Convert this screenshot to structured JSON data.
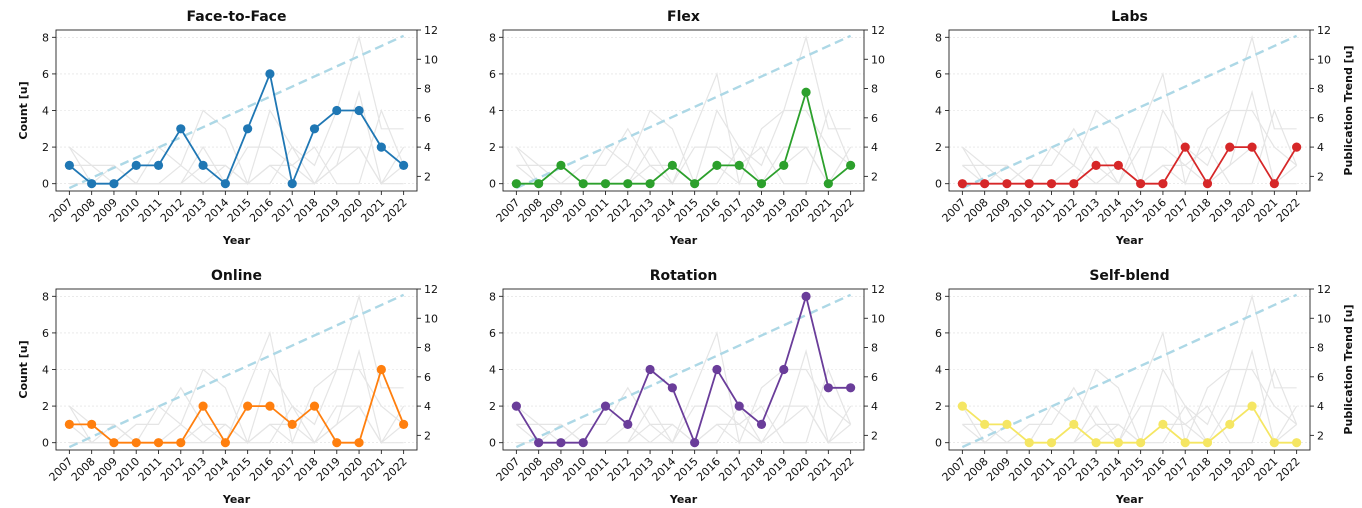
{
  "chart_data": [
    {
      "type": "line",
      "title": "Face-to-Face",
      "xlabel": "Year",
      "ylabel": "Count [u]",
      "y2label": "",
      "show_ylabel": true,
      "show_y2label": false,
      "color": "#1f77b4",
      "x": [
        2007,
        2008,
        2009,
        2010,
        2011,
        2012,
        2013,
        2014,
        2015,
        2016,
        2017,
        2018,
        2019,
        2020,
        2021,
        2022
      ],
      "values": [
        1,
        0,
        0,
        1,
        1,
        3,
        1,
        0,
        3,
        6,
        0,
        3,
        4,
        4,
        2,
        1
      ]
    },
    {
      "type": "line",
      "title": "Flex",
      "xlabel": "Year",
      "ylabel": "",
      "y2label": "",
      "show_ylabel": false,
      "show_y2label": false,
      "color": "#2ca02c",
      "x": [
        2007,
        2008,
        2009,
        2010,
        2011,
        2012,
        2013,
        2014,
        2015,
        2016,
        2017,
        2018,
        2019,
        2020,
        2021,
        2022
      ],
      "values": [
        0,
        0,
        1,
        0,
        0,
        0,
        0,
        1,
        0,
        1,
        1,
        0,
        1,
        5,
        0,
        1
      ]
    },
    {
      "type": "line",
      "title": "Labs",
      "xlabel": "Year",
      "ylabel": "",
      "y2label": "Publication Trend [u]",
      "show_ylabel": false,
      "show_y2label": true,
      "color": "#d62728",
      "x": [
        2007,
        2008,
        2009,
        2010,
        2011,
        2012,
        2013,
        2014,
        2015,
        2016,
        2017,
        2018,
        2019,
        2020,
        2021,
        2022
      ],
      "values": [
        0,
        0,
        0,
        0,
        0,
        0,
        1,
        1,
        0,
        0,
        2,
        0,
        2,
        2,
        0,
        2
      ]
    },
    {
      "type": "line",
      "title": "Online",
      "xlabel": "Year",
      "ylabel": "Count [u]",
      "y2label": "",
      "show_ylabel": true,
      "show_y2label": false,
      "color": "#ff7f0e",
      "x": [
        2007,
        2008,
        2009,
        2010,
        2011,
        2012,
        2013,
        2014,
        2015,
        2016,
        2017,
        2018,
        2019,
        2020,
        2021,
        2022
      ],
      "values": [
        1,
        1,
        0,
        0,
        0,
        0,
        2,
        0,
        2,
        2,
        1,
        2,
        0,
        0,
        4,
        1
      ]
    },
    {
      "type": "line",
      "title": "Rotation",
      "xlabel": "Year",
      "ylabel": "",
      "y2label": "",
      "show_ylabel": false,
      "show_y2label": false,
      "color": "#6a3d9a",
      "x": [
        2007,
        2008,
        2009,
        2010,
        2011,
        2012,
        2013,
        2014,
        2015,
        2016,
        2017,
        2018,
        2019,
        2020,
        2021,
        2022
      ],
      "values": [
        2,
        0,
        0,
        0,
        2,
        1,
        4,
        3,
        0,
        4,
        2,
        1,
        4,
        8,
        3,
        3
      ]
    },
    {
      "type": "line",
      "title": "Self-blend",
      "xlabel": "Year",
      "ylabel": "",
      "y2label": "Publication Trend [u]",
      "show_ylabel": false,
      "show_y2label": true,
      "color": "#f5e663",
      "x": [
        2007,
        2008,
        2009,
        2010,
        2011,
        2012,
        2013,
        2014,
        2015,
        2016,
        2017,
        2018,
        2019,
        2020,
        2021,
        2022
      ],
      "values": [
        2,
        1,
        1,
        0,
        0,
        1,
        0,
        0,
        0,
        1,
        0,
        0,
        1,
        2,
        0,
        0
      ]
    }
  ],
  "shared": {
    "ylim": [
      -0.4,
      8.4
    ],
    "yticks": [
      0,
      2,
      4,
      6,
      8
    ],
    "y2lim": [
      1,
      12
    ],
    "y2ticks": [
      2,
      4,
      6,
      8,
      10,
      12
    ],
    "trend": {
      "color": "#add8e6",
      "style": "dashed",
      "x": [
        2007,
        2022
      ],
      "y2": [
        1.2,
        11.6
      ]
    },
    "grid": "horizontal-dotted",
    "background_lines_color": "#e5e5e5"
  }
}
